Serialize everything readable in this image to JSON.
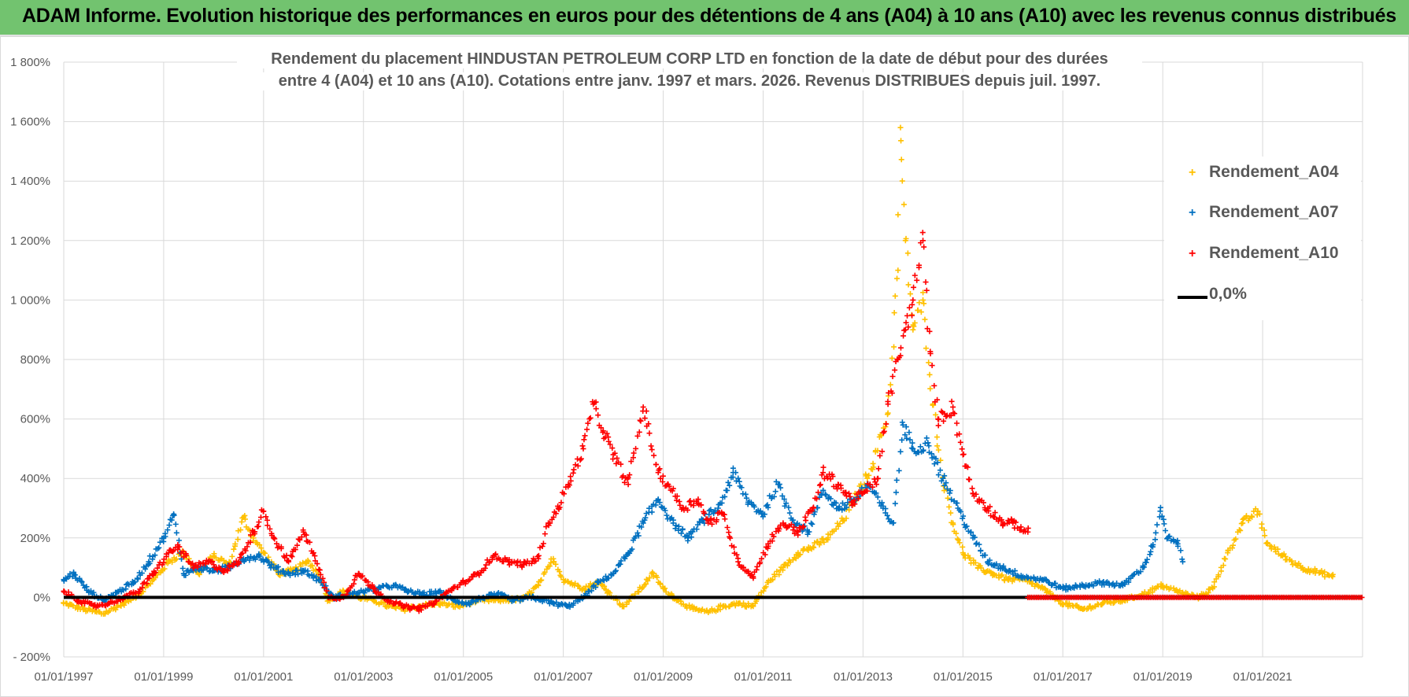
{
  "header": {
    "title": "ADAM Informe. Evolution historique des performances en euros pour des détentions de 4 ans (A04) à 10 ans (A10) avec les revenus connus distribués"
  },
  "chart_data": {
    "type": "scatter",
    "title_line1": "Rendement du placement HINDUSTAN PETROLEUM CORP LTD en fonction de la date de début pour des durées",
    "title_line2": "entre 4 (A04) et 10 ans (A10).  Cotations entre janv. 1997 et mars. 2026. Revenus DISTRIBUES depuis juil. 1997.",
    "x_start_year": 1997,
    "x_end_year": 2023,
    "x_tick_labels": [
      "01/01/1997",
      "01/01/1999",
      "01/01/2001",
      "01/01/2003",
      "01/01/2005",
      "01/01/2007",
      "01/01/2009",
      "01/01/2011",
      "01/01/2013",
      "01/01/2015",
      "01/01/2017",
      "01/01/2019",
      "01/01/2021"
    ],
    "y_tick_values": [
      -200,
      0,
      200,
      400,
      600,
      800,
      1000,
      1200,
      1400,
      1600,
      1800
    ],
    "y_tick_labels": [
      "- 200%",
      "0%",
      "200%",
      "400%",
      "600%",
      "800%",
      "1 000%",
      "1 200%",
      "1 400%",
      "1 600%",
      "1 800%"
    ],
    "ylim": [
      -200,
      1800
    ],
    "series": [
      {
        "name": "Rendement_A04",
        "color": "#ffc000",
        "points": [
          [
            1997.0,
            -20
          ],
          [
            1997.4,
            -40
          ],
          [
            1997.8,
            -55
          ],
          [
            1998.2,
            -20
          ],
          [
            1998.5,
            10
          ],
          [
            1998.8,
            60
          ],
          [
            1999.1,
            120
          ],
          [
            1999.4,
            150
          ],
          [
            1999.7,
            80
          ],
          [
            2000.0,
            140
          ],
          [
            2000.3,
            110
          ],
          [
            2000.6,
            270
          ],
          [
            2000.8,
            200
          ],
          [
            2001.0,
            150
          ],
          [
            2001.3,
            80
          ],
          [
            2001.6,
            90
          ],
          [
            2001.9,
            120
          ],
          [
            2002.1,
            80
          ],
          [
            2002.3,
            -10
          ],
          [
            2002.6,
            20
          ],
          [
            2002.9,
            0
          ],
          [
            2003.2,
            -10
          ],
          [
            2003.5,
            -30
          ],
          [
            2003.8,
            -40
          ],
          [
            2004.1,
            -30
          ],
          [
            2004.5,
            -20
          ],
          [
            2004.9,
            -30
          ],
          [
            2005.3,
            -10
          ],
          [
            2005.7,
            -10
          ],
          [
            2006.2,
            -5
          ],
          [
            2006.5,
            40
          ],
          [
            2006.8,
            130
          ],
          [
            2007.0,
            60
          ],
          [
            2007.4,
            30
          ],
          [
            2007.7,
            50
          ],
          [
            2007.9,
            20
          ],
          [
            2008.2,
            -30
          ],
          [
            2008.5,
            20
          ],
          [
            2008.8,
            80
          ],
          [
            2009.0,
            30
          ],
          [
            2009.3,
            -10
          ],
          [
            2009.6,
            -40
          ],
          [
            2009.9,
            -50
          ],
          [
            2010.2,
            -30
          ],
          [
            2010.5,
            -20
          ],
          [
            2010.8,
            -30
          ],
          [
            2011.1,
            50
          ],
          [
            2011.4,
            100
          ],
          [
            2011.7,
            150
          ],
          [
            2012.0,
            170
          ],
          [
            2012.3,
            200
          ],
          [
            2012.6,
            260
          ],
          [
            2012.9,
            350
          ],
          [
            2013.2,
            450
          ],
          [
            2013.5,
            620
          ],
          [
            2013.7,
            1100
          ],
          [
            2013.75,
            1580
          ],
          [
            2013.85,
            1200
          ],
          [
            2014.0,
            900
          ],
          [
            2014.2,
            1000
          ],
          [
            2014.4,
            650
          ],
          [
            2014.6,
            400
          ],
          [
            2014.8,
            250
          ],
          [
            2015.0,
            150
          ],
          [
            2015.3,
            100
          ],
          [
            2015.6,
            80
          ],
          [
            2015.9,
            60
          ],
          [
            2016.2,
            60
          ],
          [
            2016.6,
            30
          ],
          [
            2017.0,
            -20
          ],
          [
            2017.4,
            -40
          ],
          [
            2017.8,
            -20
          ],
          [
            2018.2,
            -10
          ],
          [
            2018.6,
            10
          ],
          [
            2019.0,
            40
          ],
          [
            2019.3,
            20
          ],
          [
            2019.7,
            0
          ],
          [
            2020.0,
            30
          ],
          [
            2020.3,
            150
          ],
          [
            2020.6,
            250
          ],
          [
            2020.9,
            290
          ],
          [
            2021.1,
            180
          ],
          [
            2021.4,
            140
          ],
          [
            2021.8,
            100
          ],
          [
            2022.2,
            80
          ],
          [
            2022.4,
            70
          ]
        ]
      },
      {
        "name": "Rendement_A07",
        "color": "#0070c0",
        "points": [
          [
            1997.0,
            60
          ],
          [
            1997.2,
            80
          ],
          [
            1997.5,
            20
          ],
          [
            1997.8,
            -10
          ],
          [
            1998.1,
            20
          ],
          [
            1998.4,
            50
          ],
          [
            1998.7,
            120
          ],
          [
            1999.0,
            200
          ],
          [
            1999.2,
            280
          ],
          [
            1999.4,
            80
          ],
          [
            1999.7,
            100
          ],
          [
            2000.0,
            90
          ],
          [
            2000.3,
            100
          ],
          [
            2000.6,
            130
          ],
          [
            2000.9,
            140
          ],
          [
            2001.2,
            100
          ],
          [
            2001.5,
            80
          ],
          [
            2001.8,
            90
          ],
          [
            2002.1,
            60
          ],
          [
            2002.4,
            0
          ],
          [
            2002.7,
            10
          ],
          [
            2003.0,
            20
          ],
          [
            2003.3,
            30
          ],
          [
            2003.6,
            40
          ],
          [
            2003.9,
            20
          ],
          [
            2004.2,
            10
          ],
          [
            2004.5,
            20
          ],
          [
            2004.8,
            -10
          ],
          [
            2005.1,
            -20
          ],
          [
            2005.4,
            0
          ],
          [
            2005.7,
            10
          ],
          [
            2006.0,
            -10
          ],
          [
            2006.4,
            0
          ],
          [
            2006.8,
            -20
          ],
          [
            2007.1,
            -30
          ],
          [
            2007.4,
            0
          ],
          [
            2007.7,
            50
          ],
          [
            2008.0,
            80
          ],
          [
            2008.3,
            150
          ],
          [
            2008.6,
            250
          ],
          [
            2008.9,
            330
          ],
          [
            2009.2,
            250
          ],
          [
            2009.5,
            200
          ],
          [
            2009.8,
            260
          ],
          [
            2010.1,
            300
          ],
          [
            2010.4,
            420
          ],
          [
            2010.7,
            320
          ],
          [
            2011.0,
            280
          ],
          [
            2011.3,
            380
          ],
          [
            2011.6,
            260
          ],
          [
            2011.9,
            220
          ],
          [
            2012.2,
            360
          ],
          [
            2012.5,
            300
          ],
          [
            2012.8,
            320
          ],
          [
            2013.1,
            380
          ],
          [
            2013.4,
            300
          ],
          [
            2013.6,
            250
          ],
          [
            2013.8,
            580
          ],
          [
            2014.0,
            500
          ],
          [
            2014.3,
            520
          ],
          [
            2014.6,
            400
          ],
          [
            2014.9,
            300
          ],
          [
            2015.2,
            200
          ],
          [
            2015.5,
            120
          ],
          [
            2015.8,
            100
          ],
          [
            2016.2,
            70
          ],
          [
            2016.6,
            60
          ],
          [
            2017.0,
            30
          ],
          [
            2017.4,
            40
          ],
          [
            2017.8,
            50
          ],
          [
            2018.2,
            40
          ],
          [
            2018.6,
            100
          ],
          [
            2018.8,
            170
          ],
          [
            2018.95,
            290
          ],
          [
            2019.1,
            200
          ],
          [
            2019.3,
            180
          ],
          [
            2019.4,
            120
          ]
        ]
      },
      {
        "name": "Rendement_A10",
        "color": "#ff0000",
        "points": [
          [
            1997.0,
            20
          ],
          [
            1997.3,
            -10
          ],
          [
            1997.6,
            -30
          ],
          [
            1997.9,
            -20
          ],
          [
            1998.2,
            0
          ],
          [
            1998.5,
            20
          ],
          [
            1998.8,
            80
          ],
          [
            1999.1,
            150
          ],
          [
            1999.3,
            170
          ],
          [
            1999.6,
            100
          ],
          [
            1999.9,
            120
          ],
          [
            2000.2,
            90
          ],
          [
            2000.5,
            120
          ],
          [
            2000.8,
            220
          ],
          [
            2001.0,
            290
          ],
          [
            2001.2,
            200
          ],
          [
            2001.5,
            120
          ],
          [
            2001.8,
            220
          ],
          [
            2002.0,
            150
          ],
          [
            2002.3,
            0
          ],
          [
            2002.6,
            0
          ],
          [
            2002.9,
            80
          ],
          [
            2003.2,
            30
          ],
          [
            2003.5,
            -10
          ],
          [
            2003.8,
            -30
          ],
          [
            2004.1,
            -40
          ],
          [
            2004.4,
            -20
          ],
          [
            2004.7,
            20
          ],
          [
            2005.0,
            50
          ],
          [
            2005.3,
            80
          ],
          [
            2005.6,
            140
          ],
          [
            2005.9,
            120
          ],
          [
            2006.2,
            110
          ],
          [
            2006.5,
            130
          ],
          [
            2006.7,
            250
          ],
          [
            2006.9,
            300
          ],
          [
            2007.1,
            380
          ],
          [
            2007.4,
            500
          ],
          [
            2007.6,
            650
          ],
          [
            2007.8,
            560
          ],
          [
            2008.0,
            480
          ],
          [
            2008.3,
            380
          ],
          [
            2008.6,
            640
          ],
          [
            2008.9,
            420
          ],
          [
            2009.1,
            380
          ],
          [
            2009.4,
            300
          ],
          [
            2009.7,
            330
          ],
          [
            2009.9,
            250
          ],
          [
            2010.2,
            280
          ],
          [
            2010.5,
            120
          ],
          [
            2010.8,
            70
          ],
          [
            2011.1,
            180
          ],
          [
            2011.4,
            250
          ],
          [
            2011.7,
            220
          ],
          [
            2012.0,
            300
          ],
          [
            2012.2,
            420
          ],
          [
            2012.5,
            380
          ],
          [
            2012.8,
            320
          ],
          [
            2013.0,
            350
          ],
          [
            2013.3,
            400
          ],
          [
            2013.5,
            650
          ],
          [
            2013.7,
            800
          ],
          [
            2013.85,
            900
          ],
          [
            2014.0,
            1000
          ],
          [
            2014.2,
            1200
          ],
          [
            2014.35,
            820
          ],
          [
            2014.5,
            600
          ],
          [
            2014.8,
            640
          ],
          [
            2015.0,
            480
          ],
          [
            2015.2,
            350
          ],
          [
            2015.5,
            300
          ],
          [
            2015.8,
            250
          ],
          [
            2016.0,
            250
          ],
          [
            2016.3,
            220
          ]
        ]
      }
    ],
    "a10_tail": {
      "from": 2016.3,
      "to": 2023.0,
      "value": 0
    },
    "zero_line": {
      "name": "0,0%",
      "color": "#000000",
      "value": 0
    },
    "legend": [
      "Rendement_A04",
      "Rendement_A07",
      "Rendement_A10",
      "0,0%"
    ],
    "legend_placement": "top-right"
  }
}
